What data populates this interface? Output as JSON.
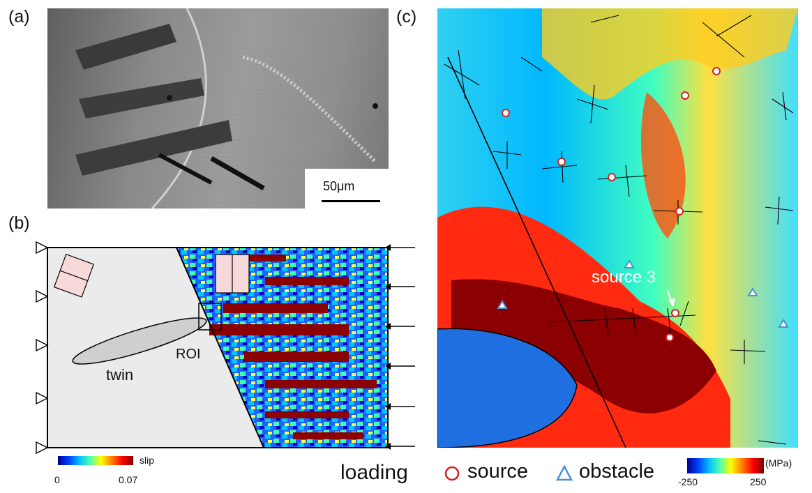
{
  "panels": {
    "a": {
      "label": "(a)",
      "scale_bar": "50μm"
    },
    "b": {
      "label": "(b)",
      "twin_label": "twin",
      "roi_label": "ROI",
      "loading_label": "loading",
      "colorbar": {
        "title": "slip",
        "min": "0",
        "max": "0.07"
      }
    },
    "c": {
      "label": "(c)",
      "source3_label": "source 3",
      "legend": {
        "source": "source",
        "obstacle": "obstacle"
      },
      "colorbar": {
        "unit": "(MPa)",
        "min": "-250",
        "max": "250"
      }
    }
  },
  "colors": {
    "source_marker": "#d42020",
    "obstacle_marker": "#4f8fd0",
    "stress_high": "#8b0000",
    "stress_low": "#00bfff"
  }
}
